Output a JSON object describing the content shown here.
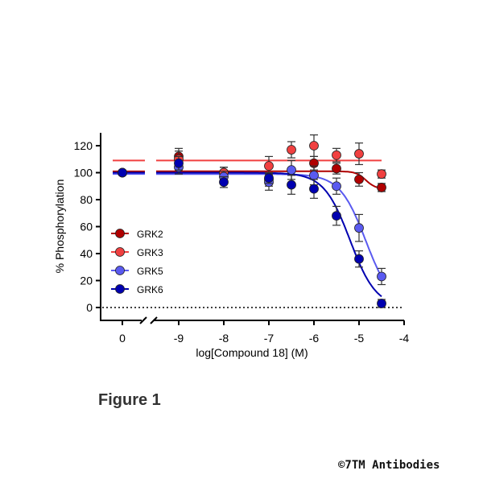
{
  "chart_data": {
    "type": "scatter",
    "xlabel": "log[Compound 18] (M)",
    "ylabel": "% Phosphorylation",
    "x_ticks": [
      {
        "value": 0,
        "label": "0"
      },
      {
        "value": -9,
        "label": "-9"
      },
      {
        "value": -8,
        "label": "-8"
      },
      {
        "value": -7,
        "label": "-7"
      },
      {
        "value": -6,
        "label": "-6"
      },
      {
        "value": -5,
        "label": "-5"
      },
      {
        "value": -4,
        "label": "-4"
      }
    ],
    "x_axis_break": [
      0,
      -9.5
    ],
    "y_ticks": [
      0,
      20,
      40,
      60,
      80,
      100,
      120
    ],
    "ylim": [
      -8,
      130
    ],
    "reference_line": {
      "y": 0,
      "style": "dotted"
    },
    "legend_placement": "left",
    "series": [
      {
        "name": "GRK2",
        "color": "#b00000",
        "x": [
          0,
          -9,
          -8,
          -7,
          -6,
          -5.5,
          -5,
          -4.5
        ],
        "y": [
          100,
          112,
          100,
          95,
          107,
          103,
          95,
          89
        ],
        "err": [
          0,
          6,
          4,
          5,
          5,
          4,
          5,
          3
        ],
        "fit": {
          "top": 101,
          "bottom": 88,
          "logIC50": -4.85,
          "hill": 4
        }
      },
      {
        "name": "GRK3",
        "color": "#f04040",
        "x": [
          0,
          -9,
          -8,
          -7,
          -6.5,
          -6,
          -5.5,
          -5,
          -4.5
        ],
        "y": [
          100,
          110,
          100,
          105,
          117,
          120,
          113,
          114,
          99
        ],
        "err": [
          0,
          6,
          4,
          7,
          6,
          8,
          5,
          8,
          3
        ],
        "fit": {
          "top": 109,
          "bottom": 109,
          "logIC50": -5,
          "hill": 1
        }
      },
      {
        "name": "GRK5",
        "color": "#5a5af0",
        "x": [
          0,
          -9,
          -8,
          -7,
          -6.5,
          -6,
          -5.5,
          -5,
          -4.5
        ],
        "y": [
          100,
          104,
          97,
          93,
          102,
          98,
          90,
          59,
          23
        ],
        "err": [
          0,
          5,
          4,
          6,
          7,
          7,
          6,
          10,
          6
        ],
        "fit": {
          "top": 99,
          "bottom": 0,
          "logIC50": -4.85,
          "hill": 1.5
        }
      },
      {
        "name": "GRK6",
        "color": "#0000b0",
        "x": [
          0,
          -9,
          -8,
          -7,
          -6.5,
          -6,
          -5.5,
          -5,
          -4.5
        ],
        "y": [
          100,
          107,
          93,
          96,
          91,
          88,
          68,
          36,
          3
        ],
        "err": [
          0,
          5,
          4,
          4,
          7,
          7,
          7,
          6,
          3
        ],
        "fit": {
          "top": 100,
          "bottom": 0,
          "logIC50": -5.2,
          "hill": 1.5
        }
      }
    ]
  },
  "figure_label": "Figure 1",
  "copyright": "©7TM Antibodies"
}
